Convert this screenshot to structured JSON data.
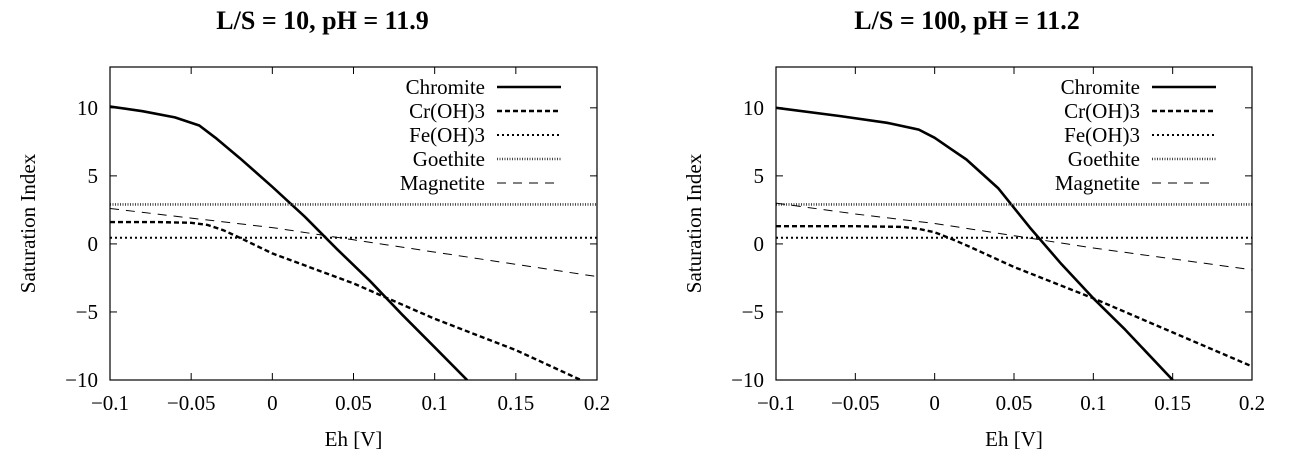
{
  "chart_data": [
    {
      "type": "line",
      "title": "L/S = 10, pH = 11.9",
      "xlabel": "Eh [V]",
      "ylabel": "Saturation Index",
      "xlim": [
        -0.1,
        0.2
      ],
      "ylim": [
        -10,
        13
      ],
      "xticks": [
        -0.1,
        -0.05,
        0,
        0.05,
        0.1,
        0.15,
        0.2
      ],
      "xtick_labels": [
        "−0.1",
        "−0.05",
        "0",
        "0.05",
        "0.1",
        "0.15",
        "0.2"
      ],
      "yticks": [
        -10,
        -5,
        0,
        5,
        10
      ],
      "ytick_labels": [
        "−10",
        "−5",
        "0",
        "5",
        "10"
      ],
      "grid": false,
      "legend": "top-right",
      "series": [
        {
          "name": "Chromite",
          "style": "solid",
          "x": [
            -0.1,
            -0.08,
            -0.06,
            -0.045,
            -0.035,
            -0.02,
            0,
            0.02,
            0.04,
            0.06,
            0.08,
            0.1,
            0.12
          ],
          "y": [
            10.1,
            9.75,
            9.3,
            8.7,
            7.8,
            6.3,
            4.2,
            2.0,
            -0.4,
            -2.7,
            -5.2,
            -7.6,
            -10.0
          ]
        },
        {
          "name": "Cr(OH)3",
          "style": "dash",
          "x": [
            -0.1,
            -0.07,
            -0.05,
            -0.04,
            -0.03,
            -0.02,
            0,
            0.05,
            0.1,
            0.15,
            0.19
          ],
          "y": [
            1.6,
            1.6,
            1.55,
            1.4,
            1.0,
            0.45,
            -0.7,
            -2.9,
            -5.5,
            -7.8,
            -10.0
          ]
        },
        {
          "name": "Fe(OH)3",
          "style": "dot",
          "x": [
            -0.1,
            0.2
          ],
          "y": [
            0.45,
            0.45
          ]
        },
        {
          "name": "Goethite",
          "style": "fine-dot",
          "x": [
            -0.1,
            0.2
          ],
          "y": [
            2.9,
            2.9
          ]
        },
        {
          "name": "Magnetite",
          "style": "light-dash",
          "x": [
            -0.1,
            -0.05,
            0,
            0.05,
            0.1,
            0.15,
            0.2
          ],
          "y": [
            2.6,
            1.9,
            1.2,
            0.3,
            -0.6,
            -1.5,
            -2.4
          ]
        }
      ]
    },
    {
      "type": "line",
      "title": "L/S = 100, pH = 11.2",
      "xlabel": "Eh [V]",
      "ylabel": "Saturation Index",
      "xlim": [
        -0.1,
        0.2
      ],
      "ylim": [
        -10,
        13
      ],
      "xticks": [
        -0.1,
        -0.05,
        0,
        0.05,
        0.1,
        0.15,
        0.2
      ],
      "xtick_labels": [
        "−0.1",
        "−0.05",
        "0",
        "0.05",
        "0.1",
        "0.15",
        "0.2"
      ],
      "yticks": [
        -10,
        -5,
        0,
        5,
        10
      ],
      "ytick_labels": [
        "−10",
        "−5",
        "0",
        "5",
        "10"
      ],
      "grid": false,
      "legend": "top-right",
      "series": [
        {
          "name": "Chromite",
          "style": "solid",
          "x": [
            -0.1,
            -0.06,
            -0.03,
            -0.01,
            0,
            0.01,
            0.02,
            0.04,
            0.06,
            0.08,
            0.1,
            0.12,
            0.15
          ],
          "y": [
            10.0,
            9.4,
            8.9,
            8.4,
            7.8,
            7.0,
            6.2,
            4.1,
            1.2,
            -1.5,
            -4.0,
            -6.3,
            -10.0
          ]
        },
        {
          "name": "Cr(OH)3",
          "style": "dash",
          "x": [
            -0.1,
            -0.05,
            -0.02,
            -0.01,
            0,
            0.01,
            0.02,
            0.05,
            0.1,
            0.15,
            0.2
          ],
          "y": [
            1.3,
            1.3,
            1.25,
            1.1,
            0.85,
            0.4,
            -0.1,
            -1.7,
            -4.0,
            -6.5,
            -9.0
          ]
        },
        {
          "name": "Fe(OH)3",
          "style": "dot",
          "x": [
            -0.1,
            0.2
          ],
          "y": [
            0.45,
            0.45
          ]
        },
        {
          "name": "Goethite",
          "style": "fine-dot",
          "x": [
            -0.1,
            0.2
          ],
          "y": [
            2.9,
            2.9
          ]
        },
        {
          "name": "Magnetite",
          "style": "light-dash",
          "x": [
            -0.1,
            -0.05,
            0,
            0.05,
            0.1,
            0.15,
            0.2
          ],
          "y": [
            3.0,
            2.2,
            1.5,
            0.6,
            -0.3,
            -1.1,
            -1.9
          ]
        }
      ]
    }
  ]
}
